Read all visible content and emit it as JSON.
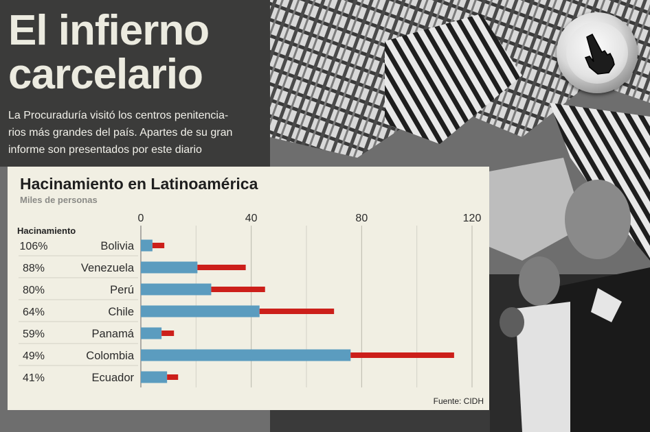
{
  "headline": {
    "title_line1": "El infierno",
    "title_line2": "carcelario",
    "intro_line1": "La Procuraduría visitó los centros penitencia-",
    "intro_line2": "rios más grandes del país. Apartes de su gran",
    "intro_line3": "informe son presentados por este diario"
  },
  "colors": {
    "capacity_bar": "#5b9cbf",
    "excess_bar": "#cc1f1a",
    "panel": "#f1efe3",
    "headline_panel": "#3b3b3a"
  },
  "cursor_icon": "hand-pointer-icon",
  "chart_data": {
    "type": "bar",
    "orientation": "horizontal",
    "stacked": true,
    "title": "Hacinamiento en Latinoamérica",
    "subtitle": "Miles de personas",
    "row_header": "Hacinamiento",
    "source": "Fuente: CIDH",
    "categories": [
      "Bolivia",
      "Venezuela",
      "Perú",
      "Chile",
      "Panamá",
      "Colombia",
      "Ecuador"
    ],
    "overcrowding": [
      "106%",
      "88%",
      "80%",
      "64%",
      "59%",
      "49%",
      "41%"
    ],
    "series": [
      {
        "values": [
          4.2,
          20.5,
          25.5,
          43.0,
          7.5,
          76.0,
          9.5
        ]
      },
      {
        "values": [
          4.3,
          17.5,
          19.5,
          27.0,
          4.5,
          37.5,
          4.0
        ]
      }
    ],
    "xlim": [
      0,
      120
    ],
    "xticks": [
      "0",
      "40",
      "80",
      "120"
    ],
    "grid": true
  }
}
